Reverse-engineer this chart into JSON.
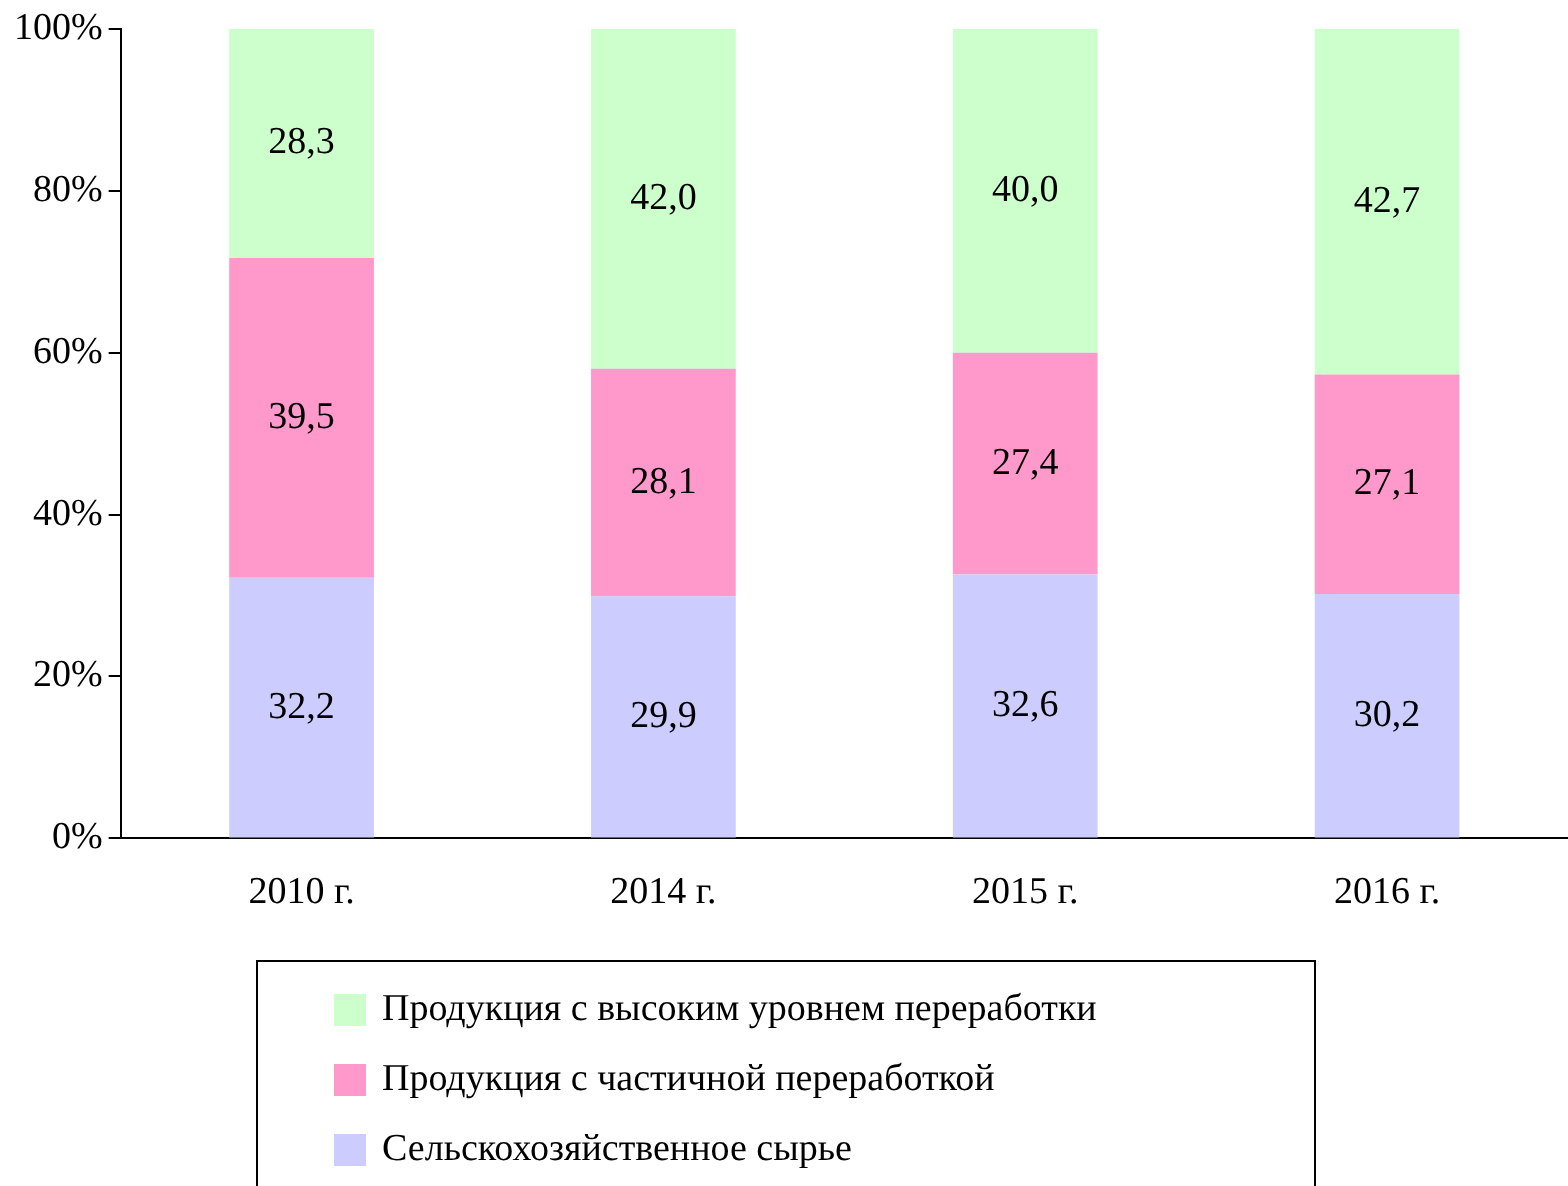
{
  "chart_data": {
    "type": "bar",
    "stacked": true,
    "categories": [
      "2010 г.",
      "2014 г.",
      "2015 г.",
      "2016 г."
    ],
    "series": [
      {
        "name": "Сельскохозяйственное сырье",
        "color": "#ccccff",
        "values": [
          32.2,
          29.9,
          32.6,
          30.2
        ],
        "value_labels": [
          "32,2",
          "29,9",
          "32,6",
          "30,2"
        ]
      },
      {
        "name": "Продукция с частичной переработкой",
        "color": "#ff99cc",
        "values": [
          39.5,
          28.1,
          27.4,
          27.1
        ],
        "value_labels": [
          "39,5",
          "28,1",
          "27,4",
          "27,1"
        ]
      },
      {
        "name": "Продукция с высоким уровнем переработки",
        "color": "#ccffcc",
        "values": [
          28.3,
          42.0,
          40.0,
          42.7
        ],
        "value_labels": [
          "28,3",
          "42,0",
          "40,0",
          "42,7"
        ]
      }
    ],
    "ylim": [
      0,
      100
    ],
    "yticks": [
      {
        "value": 0,
        "label": "0%"
      },
      {
        "value": 20,
        "label": "20%"
      },
      {
        "value": 40,
        "label": "40%"
      },
      {
        "value": 60,
        "label": "60%"
      },
      {
        "value": 80,
        "label": "80%"
      },
      {
        "value": 100,
        "label": "100%"
      }
    ],
    "grid": false,
    "legend": "bottom"
  }
}
